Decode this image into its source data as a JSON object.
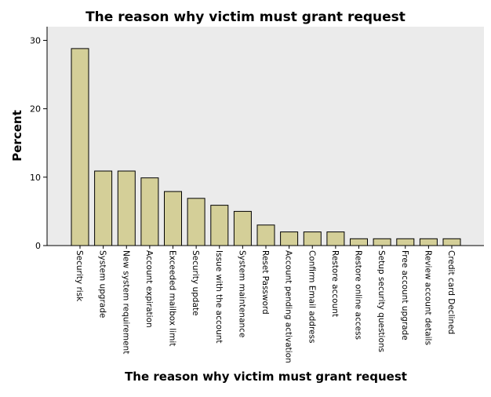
{
  "chart_data": {
    "type": "bar",
    "title": "The reason why victim must grant request",
    "xlabel": "The reason why victim must grant request",
    "ylabel": "Percent",
    "ylim": [
      0,
      32
    ],
    "yticks": [
      0,
      10,
      20,
      30
    ],
    "grid": false,
    "bar_color": "#d4cf98",
    "plot_background": "#ebebeb",
    "categories": [
      "Security risk",
      "System upgrade",
      "New system requirement",
      "Account expiration",
      "Exceeded mailbox limit",
      "Security update",
      "Issue with the account",
      "System maintenance",
      "Reset Password",
      "Account pending activation",
      "Confirm Email address",
      "Restore account",
      "Restore online access",
      "Setup security questions",
      "Free account upgrade",
      "Review account details",
      "Credit card Declined"
    ],
    "values": [
      28.8,
      10.9,
      10.9,
      9.9,
      7.9,
      6.9,
      5.9,
      5.0,
      3.0,
      2.0,
      2.0,
      2.0,
      1.0,
      1.0,
      1.0,
      1.0,
      1.0
    ]
  }
}
